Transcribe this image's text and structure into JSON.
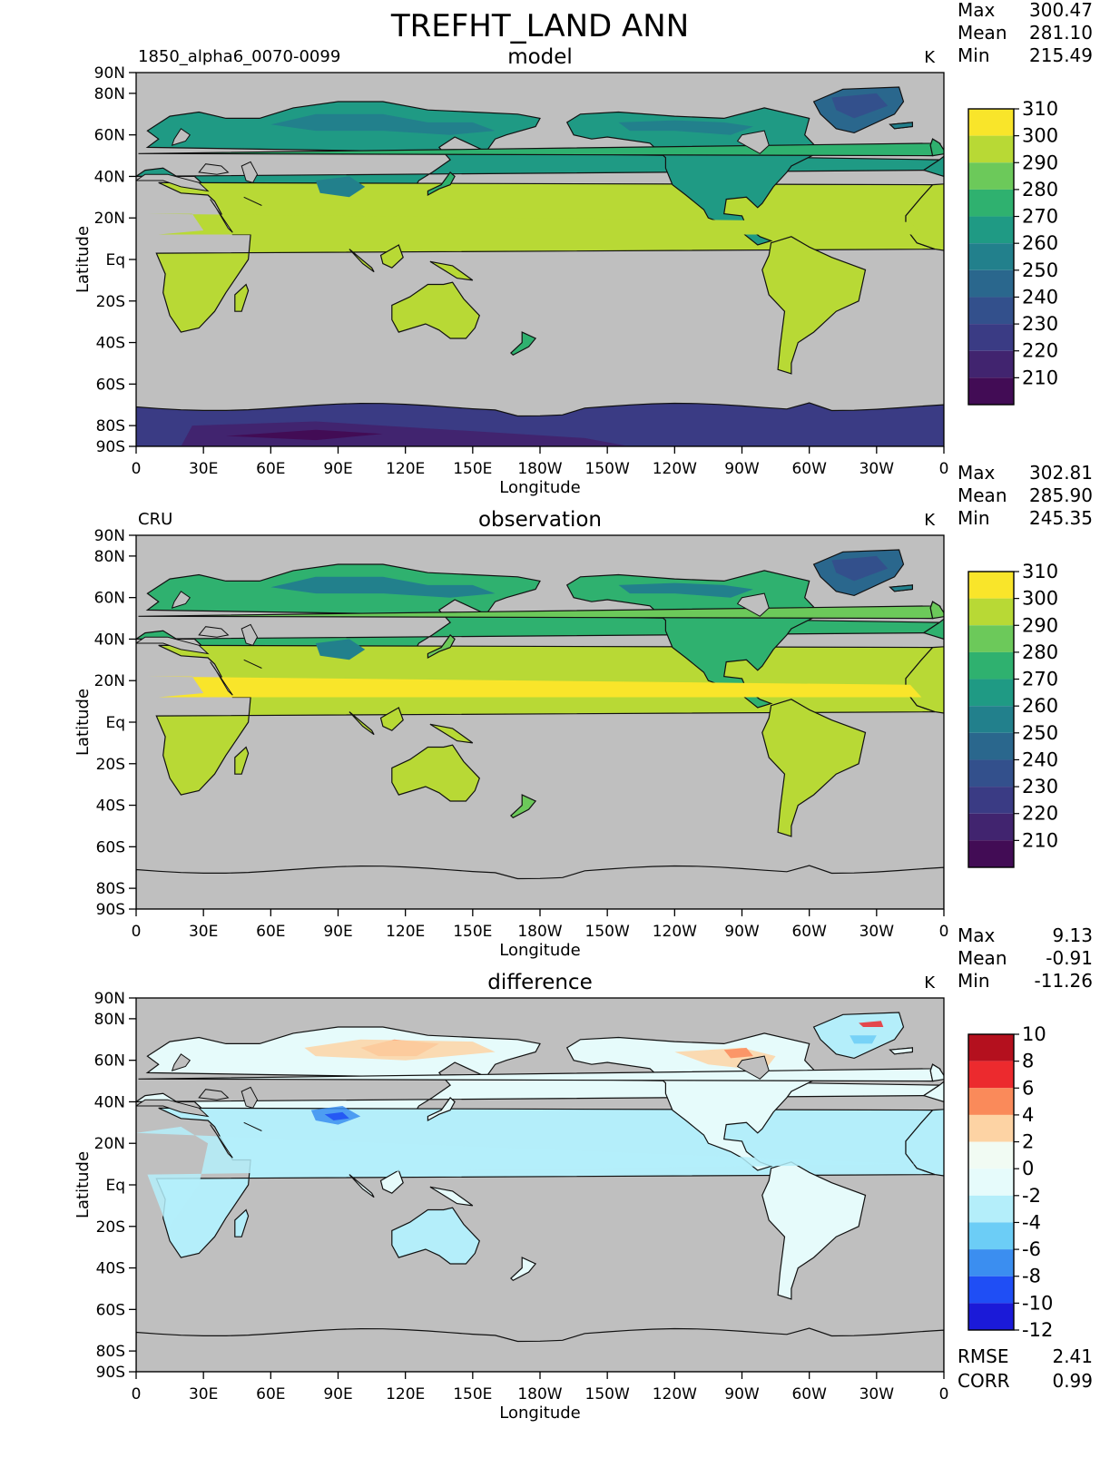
{
  "title": "TREFHT_LAND ANN",
  "panels": [
    {
      "id": "model",
      "left_label": "1850_alpha6_0070-0099",
      "center_label": "model",
      "units": "K",
      "stats": [
        {
          "label": "Max",
          "value": "300.47"
        },
        {
          "label": "Mean",
          "value": "281.10"
        },
        {
          "label": "Min",
          "value": "215.49"
        }
      ]
    },
    {
      "id": "observation",
      "left_label": "CRU",
      "center_label": "observation",
      "units": "K",
      "stats": [
        {
          "label": "Max",
          "value": "302.81"
        },
        {
          "label": "Mean",
          "value": "285.90"
        },
        {
          "label": "Min",
          "value": "245.35"
        }
      ]
    },
    {
      "id": "difference",
      "left_label": "",
      "center_label": "difference",
      "units": "K",
      "stats": [
        {
          "label": "Max",
          "value": "9.13"
        },
        {
          "label": "Mean",
          "value": "-0.91"
        },
        {
          "label": "Min",
          "value": "-11.26"
        }
      ],
      "extra_stats": [
        {
          "label": "RMSE",
          "value": "2.41"
        },
        {
          "label": "CORR",
          "value": "0.99"
        }
      ]
    }
  ],
  "axes": {
    "xlabel": "Longitude",
    "ylabel": "Latitude",
    "x_ticks": [
      "0",
      "30E",
      "60E",
      "90E",
      "120E",
      "150E",
      "180W",
      "150W",
      "120W",
      "90W",
      "60W",
      "30W",
      "0"
    ],
    "y_ticks": [
      "90N",
      "80N",
      "60N",
      "40N",
      "20N",
      "Eq",
      "20S",
      "40S",
      "60S",
      "80S",
      "90S"
    ]
  },
  "colorbars": {
    "temperature": {
      "labels": [
        "310",
        "300",
        "290",
        "280",
        "270",
        "260",
        "250",
        "240",
        "230",
        "220",
        "210"
      ],
      "colors": [
        "#f9e52a",
        "#b8d935",
        "#6cc95a",
        "#2fb16f",
        "#1f9a84",
        "#22808c",
        "#2a678d",
        "#33508c",
        "#3a3b84",
        "#41246f",
        "#420c55"
      ]
    },
    "difference": {
      "labels": [
        "10",
        "8",
        "6",
        "4",
        "2",
        "0",
        "-2",
        "-4",
        "-6",
        "-8",
        "-10",
        "-12"
      ],
      "colors": [
        "#b4101e",
        "#ec2a2e",
        "#fa8a5a",
        "#fdd3a4",
        "#f1fbf3",
        "#e6fbfb",
        "#b4eefa",
        "#6ccdf6",
        "#3b8ef0",
        "#1f4ef5",
        "#1b1ad8"
      ]
    }
  },
  "colors": {
    "ocean": "#bfbfbf",
    "coast": "#111111"
  }
}
